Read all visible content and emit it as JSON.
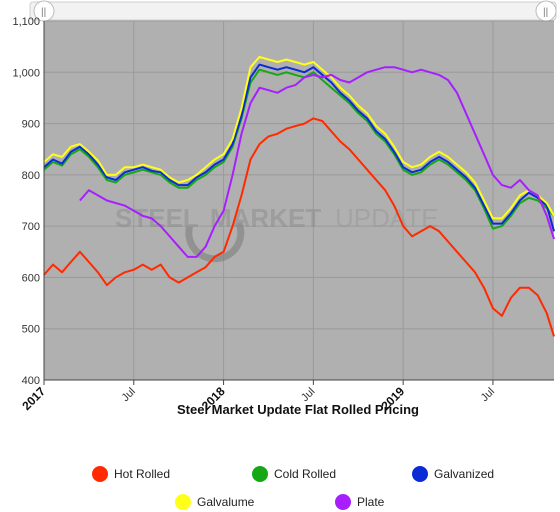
{
  "watermark": {
    "part1": "STEEL",
    "part2": "MARKET",
    "part3": "UPDATE"
  },
  "chart_data": {
    "type": "line",
    "title": "Steel Market Update Flat Rolled Pricing",
    "xlabel": "",
    "ylabel": "",
    "ylim": [
      400,
      1100
    ],
    "yticks": [
      "400",
      "500",
      "600",
      "700",
      "800",
      "900",
      "1,000",
      "1,100"
    ],
    "xticks": [
      {
        "label": "2017",
        "t": 0,
        "major": true
      },
      {
        "label": "Jul",
        "t": 0.5,
        "major": false
      },
      {
        "label": "2018",
        "t": 1.0,
        "major": true
      },
      {
        "label": "Jul",
        "t": 1.5,
        "major": false
      },
      {
        "label": "2019",
        "t": 2.0,
        "major": true
      },
      {
        "label": "Jul",
        "t": 2.5,
        "major": false
      }
    ],
    "x_range_years": [
      0,
      2.84
    ],
    "grid": true,
    "legend_position": "bottom",
    "series": [
      {
        "name": "Hot Rolled",
        "color": "#ff2a00",
        "points": [
          [
            0.0,
            605
          ],
          [
            0.05,
            625
          ],
          [
            0.1,
            610
          ],
          [
            0.15,
            630
          ],
          [
            0.2,
            650
          ],
          [
            0.25,
            630
          ],
          [
            0.3,
            610
          ],
          [
            0.35,
            585
          ],
          [
            0.4,
            600
          ],
          [
            0.45,
            610
          ],
          [
            0.5,
            615
          ],
          [
            0.55,
            625
          ],
          [
            0.6,
            615
          ],
          [
            0.65,
            625
          ],
          [
            0.7,
            600
          ],
          [
            0.75,
            590
          ],
          [
            0.8,
            600
          ],
          [
            0.85,
            610
          ],
          [
            0.9,
            620
          ],
          [
            0.95,
            640
          ],
          [
            1.0,
            650
          ],
          [
            1.05,
            700
          ],
          [
            1.1,
            760
          ],
          [
            1.15,
            830
          ],
          [
            1.2,
            860
          ],
          [
            1.25,
            875
          ],
          [
            1.3,
            880
          ],
          [
            1.35,
            890
          ],
          [
            1.4,
            895
          ],
          [
            1.45,
            900
          ],
          [
            1.5,
            910
          ],
          [
            1.55,
            905
          ],
          [
            1.6,
            885
          ],
          [
            1.65,
            865
          ],
          [
            1.7,
            850
          ],
          [
            1.75,
            830
          ],
          [
            1.8,
            810
          ],
          [
            1.85,
            790
          ],
          [
            1.9,
            770
          ],
          [
            1.95,
            740
          ],
          [
            2.0,
            700
          ],
          [
            2.05,
            680
          ],
          [
            2.1,
            690
          ],
          [
            2.15,
            700
          ],
          [
            2.2,
            690
          ],
          [
            2.25,
            670
          ],
          [
            2.3,
            650
          ],
          [
            2.35,
            630
          ],
          [
            2.4,
            610
          ],
          [
            2.45,
            580
          ],
          [
            2.5,
            540
          ],
          [
            2.55,
            525
          ],
          [
            2.6,
            560
          ],
          [
            2.65,
            580
          ],
          [
            2.7,
            580
          ],
          [
            2.75,
            565
          ],
          [
            2.8,
            530
          ],
          [
            2.84,
            485
          ]
        ]
      },
      {
        "name": "Cold Rolled",
        "color": "#16a814",
        "points": [
          [
            0.0,
            810
          ],
          [
            0.05,
            825
          ],
          [
            0.1,
            818
          ],
          [
            0.15,
            840
          ],
          [
            0.2,
            850
          ],
          [
            0.25,
            835
          ],
          [
            0.3,
            815
          ],
          [
            0.35,
            790
          ],
          [
            0.4,
            785
          ],
          [
            0.45,
            800
          ],
          [
            0.5,
            805
          ],
          [
            0.55,
            810
          ],
          [
            0.6,
            805
          ],
          [
            0.65,
            800
          ],
          [
            0.7,
            785
          ],
          [
            0.75,
            775
          ],
          [
            0.8,
            775
          ],
          [
            0.85,
            790
          ],
          [
            0.9,
            800
          ],
          [
            0.95,
            815
          ],
          [
            1.0,
            825
          ],
          [
            1.05,
            855
          ],
          [
            1.1,
            910
          ],
          [
            1.15,
            980
          ],
          [
            1.2,
            1005
          ],
          [
            1.25,
            1000
          ],
          [
            1.3,
            995
          ],
          [
            1.35,
            1000
          ],
          [
            1.4,
            995
          ],
          [
            1.45,
            990
          ],
          [
            1.5,
            1000
          ],
          [
            1.55,
            985
          ],
          [
            1.6,
            970
          ],
          [
            1.65,
            955
          ],
          [
            1.7,
            940
          ],
          [
            1.75,
            920
          ],
          [
            1.8,
            905
          ],
          [
            1.85,
            880
          ],
          [
            1.9,
            865
          ],
          [
            1.95,
            840
          ],
          [
            2.0,
            810
          ],
          [
            2.05,
            800
          ],
          [
            2.1,
            805
          ],
          [
            2.15,
            820
          ],
          [
            2.2,
            830
          ],
          [
            2.25,
            820
          ],
          [
            2.3,
            805
          ],
          [
            2.35,
            790
          ],
          [
            2.4,
            770
          ],
          [
            2.45,
            735
          ],
          [
            2.5,
            695
          ],
          [
            2.55,
            700
          ],
          [
            2.6,
            720
          ],
          [
            2.65,
            745
          ],
          [
            2.7,
            755
          ],
          [
            2.75,
            750
          ],
          [
            2.8,
            735
          ],
          [
            2.84,
            720
          ]
        ]
      },
      {
        "name": "Galvanized",
        "color": "#0a2bd6",
        "points": [
          [
            0.0,
            815
          ],
          [
            0.05,
            830
          ],
          [
            0.1,
            822
          ],
          [
            0.15,
            845
          ],
          [
            0.2,
            855
          ],
          [
            0.25,
            840
          ],
          [
            0.3,
            820
          ],
          [
            0.35,
            795
          ],
          [
            0.4,
            790
          ],
          [
            0.45,
            805
          ],
          [
            0.5,
            810
          ],
          [
            0.55,
            815
          ],
          [
            0.6,
            808
          ],
          [
            0.65,
            805
          ],
          [
            0.7,
            790
          ],
          [
            0.75,
            780
          ],
          [
            0.8,
            780
          ],
          [
            0.85,
            795
          ],
          [
            0.9,
            805
          ],
          [
            0.95,
            820
          ],
          [
            1.0,
            830
          ],
          [
            1.05,
            860
          ],
          [
            1.1,
            915
          ],
          [
            1.15,
            990
          ],
          [
            1.2,
            1015
          ],
          [
            1.25,
            1010
          ],
          [
            1.3,
            1005
          ],
          [
            1.35,
            1010
          ],
          [
            1.4,
            1005
          ],
          [
            1.45,
            1000
          ],
          [
            1.5,
            1010
          ],
          [
            1.55,
            995
          ],
          [
            1.6,
            980
          ],
          [
            1.65,
            960
          ],
          [
            1.7,
            945
          ],
          [
            1.75,
            925
          ],
          [
            1.8,
            910
          ],
          [
            1.85,
            885
          ],
          [
            1.9,
            870
          ],
          [
            1.95,
            845
          ],
          [
            2.0,
            815
          ],
          [
            2.05,
            805
          ],
          [
            2.1,
            810
          ],
          [
            2.15,
            825
          ],
          [
            2.2,
            835
          ],
          [
            2.25,
            825
          ],
          [
            2.3,
            810
          ],
          [
            2.35,
            795
          ],
          [
            2.4,
            775
          ],
          [
            2.45,
            740
          ],
          [
            2.5,
            705
          ],
          [
            2.55,
            705
          ],
          [
            2.6,
            725
          ],
          [
            2.65,
            750
          ],
          [
            2.7,
            765
          ],
          [
            2.75,
            755
          ],
          [
            2.8,
            740
          ],
          [
            2.84,
            690
          ]
        ]
      },
      {
        "name": "Galvalume",
        "color": "#ffff1a",
        "points": [
          [
            0.0,
            825
          ],
          [
            0.05,
            840
          ],
          [
            0.1,
            835
          ],
          [
            0.15,
            855
          ],
          [
            0.2,
            860
          ],
          [
            0.25,
            845
          ],
          [
            0.3,
            828
          ],
          [
            0.35,
            800
          ],
          [
            0.4,
            800
          ],
          [
            0.45,
            815
          ],
          [
            0.5,
            815
          ],
          [
            0.55,
            820
          ],
          [
            0.6,
            815
          ],
          [
            0.65,
            810
          ],
          [
            0.7,
            795
          ],
          [
            0.75,
            785
          ],
          [
            0.8,
            790
          ],
          [
            0.85,
            800
          ],
          [
            0.9,
            815
          ],
          [
            0.95,
            830
          ],
          [
            1.0,
            840
          ],
          [
            1.05,
            870
          ],
          [
            1.1,
            930
          ],
          [
            1.15,
            1010
          ],
          [
            1.2,
            1030
          ],
          [
            1.25,
            1025
          ],
          [
            1.3,
            1020
          ],
          [
            1.35,
            1025
          ],
          [
            1.4,
            1020
          ],
          [
            1.45,
            1015
          ],
          [
            1.5,
            1020
          ],
          [
            1.55,
            1005
          ],
          [
            1.6,
            990
          ],
          [
            1.65,
            970
          ],
          [
            1.7,
            955
          ],
          [
            1.75,
            935
          ],
          [
            1.8,
            920
          ],
          [
            1.85,
            895
          ],
          [
            1.9,
            880
          ],
          [
            1.95,
            855
          ],
          [
            2.0,
            825
          ],
          [
            2.05,
            815
          ],
          [
            2.1,
            820
          ],
          [
            2.15,
            835
          ],
          [
            2.2,
            845
          ],
          [
            2.25,
            835
          ],
          [
            2.3,
            820
          ],
          [
            2.35,
            805
          ],
          [
            2.4,
            785
          ],
          [
            2.45,
            750
          ],
          [
            2.5,
            715
          ],
          [
            2.55,
            715
          ],
          [
            2.6,
            735
          ],
          [
            2.65,
            760
          ],
          [
            2.7,
            770
          ],
          [
            2.75,
            760
          ],
          [
            2.8,
            745
          ],
          [
            2.84,
            720
          ]
        ]
      },
      {
        "name": "Plate",
        "color": "#a81fff",
        "points": [
          [
            0.2,
            750
          ],
          [
            0.25,
            770
          ],
          [
            0.3,
            760
          ],
          [
            0.35,
            750
          ],
          [
            0.4,
            745
          ],
          [
            0.45,
            740
          ],
          [
            0.5,
            730
          ],
          [
            0.55,
            720
          ],
          [
            0.6,
            715
          ],
          [
            0.65,
            700
          ],
          [
            0.7,
            680
          ],
          [
            0.75,
            660
          ],
          [
            0.8,
            640
          ],
          [
            0.85,
            640
          ],
          [
            0.9,
            660
          ],
          [
            0.95,
            700
          ],
          [
            1.0,
            730
          ],
          [
            1.05,
            800
          ],
          [
            1.1,
            880
          ],
          [
            1.15,
            940
          ],
          [
            1.2,
            970
          ],
          [
            1.25,
            965
          ],
          [
            1.3,
            960
          ],
          [
            1.35,
            970
          ],
          [
            1.4,
            975
          ],
          [
            1.45,
            990
          ],
          [
            1.5,
            995
          ],
          [
            1.55,
            990
          ],
          [
            1.6,
            995
          ],
          [
            1.65,
            985
          ],
          [
            1.7,
            980
          ],
          [
            1.75,
            990
          ],
          [
            1.8,
            1000
          ],
          [
            1.85,
            1005
          ],
          [
            1.9,
            1010
          ],
          [
            1.95,
            1010
          ],
          [
            2.0,
            1005
          ],
          [
            2.05,
            1000
          ],
          [
            2.1,
            1005
          ],
          [
            2.15,
            1000
          ],
          [
            2.2,
            995
          ],
          [
            2.25,
            985
          ],
          [
            2.3,
            960
          ],
          [
            2.35,
            920
          ],
          [
            2.4,
            880
          ],
          [
            2.45,
            840
          ],
          [
            2.5,
            800
          ],
          [
            2.55,
            780
          ],
          [
            2.6,
            775
          ],
          [
            2.65,
            790
          ],
          [
            2.7,
            770
          ],
          [
            2.75,
            760
          ],
          [
            2.8,
            720
          ],
          [
            2.84,
            675
          ]
        ]
      }
    ]
  }
}
